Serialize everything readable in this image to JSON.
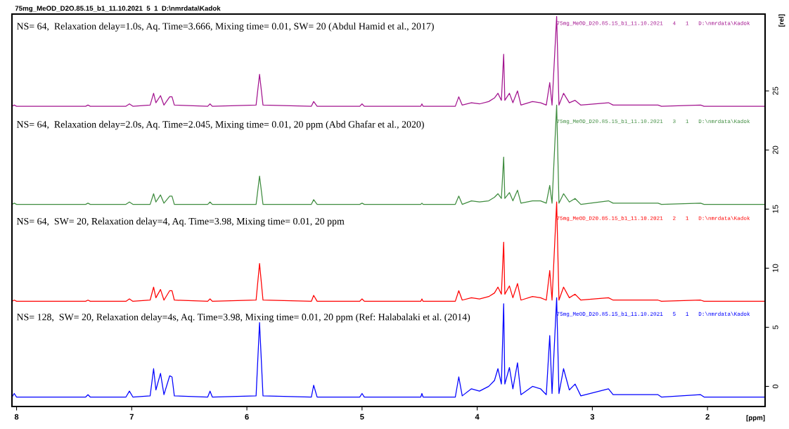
{
  "chart_data": {
    "type": "line",
    "title": "75mg_MeOD_D2O.85.15_b1_11.10.2021  5  1  D:\\nmrdata\\Kadok",
    "xlabel": "[ppm]",
    "ylabel": "[rel]",
    "x": [
      8.04,
      8.02,
      8.0,
      7.4,
      7.38,
      7.36,
      7.05,
      7.02,
      6.99,
      6.84,
      6.81,
      6.79,
      6.75,
      6.72,
      6.67,
      6.65,
      6.63,
      6.34,
      6.32,
      6.3,
      5.92,
      5.89,
      5.86,
      5.44,
      5.42,
      5.39,
      5.02,
      5.0,
      4.98,
      4.49,
      4.48,
      4.47,
      4.19,
      4.16,
      4.13,
      4.05,
      3.98,
      3.9,
      3.85,
      3.82,
      3.79,
      3.77,
      3.76,
      3.72,
      3.69,
      3.65,
      3.62,
      3.52,
      3.45,
      3.4,
      3.37,
      3.35,
      3.31,
      3.29,
      3.25,
      3.2,
      3.15,
      3.1,
      2.86,
      2.82,
      2.43,
      2.4,
      2.06,
      2.03,
      1.5
    ],
    "series": [
      {
        "name": "75mg_MeOD_D20.85.15_b1_11.10.2021   4   1   D:\\nmrdata\\Kadok",
        "color": "#a3148f",
        "values": [
          23.7,
          23.8,
          23.7,
          23.7,
          23.8,
          23.7,
          23.7,
          23.9,
          23.7,
          23.8,
          24.8,
          24.0,
          24.6,
          23.8,
          24.5,
          24.5,
          23.8,
          23.7,
          23.9,
          23.7,
          23.8,
          26.4,
          23.8,
          23.7,
          24.1,
          23.7,
          23.7,
          23.9,
          23.7,
          23.7,
          23.9,
          23.7,
          23.7,
          24.5,
          23.8,
          24.0,
          23.9,
          24.1,
          24.4,
          24.8,
          24.2,
          28.1,
          24.2,
          24.8,
          24.0,
          25.0,
          23.8,
          24.1,
          24.0,
          23.8,
          25.7,
          23.8,
          31.3,
          23.8,
          24.8,
          24.0,
          24.2,
          23.8,
          24.0,
          23.8,
          23.8,
          23.7,
          23.8,
          23.7,
          23.7
        ]
      },
      {
        "name": "75mg_MeOD_D20.85.15_b1_11.10.2021   3   1   D:\\nmrdata\\Kadok",
        "color": "#3f8c3f",
        "values": [
          15.4,
          15.5,
          15.4,
          15.4,
          15.5,
          15.4,
          15.4,
          15.6,
          15.4,
          15.4,
          16.3,
          15.6,
          16.2,
          15.5,
          16.1,
          16.1,
          15.4,
          15.4,
          15.6,
          15.4,
          15.4,
          17.8,
          15.4,
          15.4,
          15.8,
          15.4,
          15.4,
          15.5,
          15.4,
          15.4,
          15.5,
          15.4,
          15.4,
          16.1,
          15.4,
          15.7,
          15.6,
          15.7,
          16.0,
          16.3,
          15.9,
          19.4,
          15.9,
          16.4,
          15.7,
          16.6,
          15.5,
          15.7,
          15.7,
          15.5,
          17.0,
          15.5,
          23.8,
          15.5,
          16.3,
          15.6,
          15.9,
          15.4,
          15.7,
          15.5,
          15.5,
          15.4,
          15.5,
          15.4,
          15.4
        ]
      },
      {
        "name": "75mg_MeOD_D20.85.15_b1_11.10.2021   2   1   D:\\nmrdata\\Kadok",
        "color": "#ff0000",
        "values": [
          7.2,
          7.3,
          7.2,
          7.2,
          7.3,
          7.2,
          7.2,
          7.4,
          7.2,
          7.3,
          8.4,
          7.5,
          8.2,
          7.3,
          8.1,
          8.1,
          7.3,
          7.2,
          7.4,
          7.2,
          7.3,
          10.4,
          7.3,
          7.2,
          7.7,
          7.2,
          7.2,
          7.4,
          7.2,
          7.2,
          7.4,
          7.2,
          7.2,
          8.1,
          7.3,
          7.5,
          7.4,
          7.6,
          7.9,
          8.4,
          7.8,
          12.2,
          7.8,
          8.5,
          7.5,
          8.7,
          7.3,
          7.6,
          7.5,
          7.3,
          9.8,
          7.3,
          15.6,
          7.3,
          8.4,
          7.5,
          7.8,
          7.3,
          7.5,
          7.3,
          7.3,
          7.2,
          7.3,
          7.2,
          7.2
        ]
      },
      {
        "name": "75mg_MeOD_D20.85.15_b1_11.10.2021   5   1   D:\\nmrdata\\Kadok",
        "color": "#0000ff",
        "values": [
          -0.9,
          -0.6,
          -0.9,
          -0.9,
          -0.7,
          -0.9,
          -0.9,
          -0.4,
          -0.9,
          -0.8,
          1.5,
          -0.3,
          1.1,
          -0.7,
          0.9,
          0.8,
          -0.8,
          -0.9,
          -0.4,
          -0.9,
          -0.8,
          5.4,
          -0.8,
          -0.9,
          0.1,
          -0.9,
          -0.9,
          -0.6,
          -0.9,
          -0.9,
          -0.6,
          -0.9,
          -0.9,
          0.8,
          -0.8,
          -0.2,
          -0.4,
          0.0,
          0.5,
          1.5,
          0.2,
          7.0,
          0.2,
          1.6,
          -0.2,
          2.0,
          -0.7,
          0.0,
          -0.2,
          -0.7,
          4.3,
          -0.6,
          7.5,
          -0.6,
          1.5,
          -0.3,
          0.2,
          -0.8,
          -0.2,
          -0.7,
          -0.7,
          -0.9,
          -0.7,
          -0.9,
          -0.9
        ]
      }
    ],
    "annotations": [
      "NS= 64,  Relaxation delay=1.0s, Aq. Time=3.666, Mixing time= 0.01, SW= 20 (Abdul Hamid et al., 2017)",
      "NS= 64,  Relaxation delay=2.0s, Aq. Time=2.045, Mixing time= 0.01, 20 ppm (Abd Ghafar et al., 2020)",
      "NS= 64,  SW= 20, Relaxation delay=4, Aq. Time=3.98, Mixing time= 0.01, 20 ppm",
      "NS= 128,  SW= 20, Relaxation delay=4s, Aq. Time=3.98, Mixing time= 0.01, 20 ppm (Ref: Halabalaki et al. (2014)"
    ],
    "xlim": [
      8.04,
      1.5
    ],
    "xticks": [
      8,
      7,
      6,
      5,
      4,
      3,
      2
    ],
    "ylim": [
      -1.7,
      31.5
    ],
    "yticks": [
      0,
      5,
      10,
      15,
      20,
      25
    ],
    "grid": false,
    "legend": false
  }
}
